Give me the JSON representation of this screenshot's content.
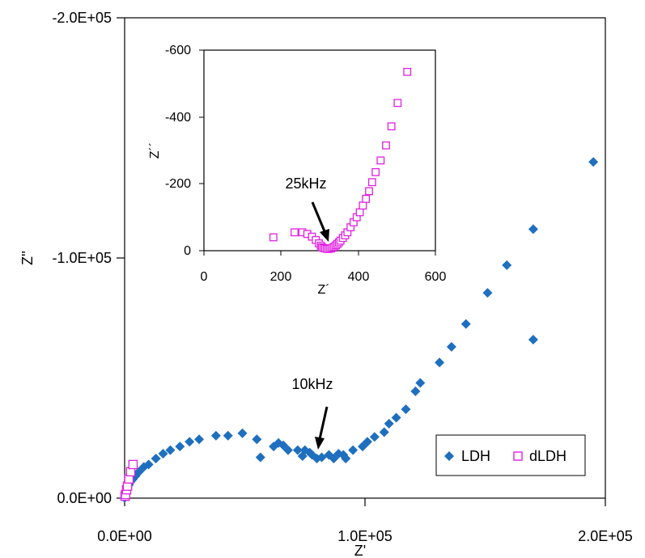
{
  "chart_data": [
    {
      "type": "scatter",
      "xlabel": "Z'",
      "ylabel": "Z''",
      "xlim": [
        0,
        200000
      ],
      "ylim": [
        0,
        -200000
      ],
      "x_ticks": [
        "0.0E+00",
        "1.0E+05",
        "2.0E+05"
      ],
      "y_ticks": [
        "0.0E+00",
        "-1.0E+05",
        "-2.0E+05"
      ],
      "legend_position": "bottom-right",
      "annotation": {
        "text": "10kHz",
        "x": 82000,
        "y": -17000
      },
      "series": [
        {
          "name": "LDH",
          "color": "#1f6fbf",
          "marker": "diamond",
          "points": [
            [
              0,
              -100
            ],
            [
              400,
              -1500
            ],
            [
              800,
              -3000
            ],
            [
              1200,
              -4200
            ],
            [
              1800,
              -5500
            ],
            [
              2500,
              -6800
            ],
            [
              3500,
              -8000
            ],
            [
              4500,
              -9200
            ],
            [
              6000,
              -11000
            ],
            [
              8000,
              -13000
            ],
            [
              10000,
              -14000
            ],
            [
              13000,
              -16500
            ],
            [
              16000,
              -18500
            ],
            [
              19000,
              -20000
            ],
            [
              23000,
              -21500
            ],
            [
              27000,
              -23500
            ],
            [
              31000,
              -24500
            ],
            [
              38000,
              -26000
            ],
            [
              43000,
              -26000
            ],
            [
              49000,
              -27000
            ],
            [
              55000,
              -24500
            ],
            [
              56500,
              -17000
            ],
            [
              62000,
              -21500
            ],
            [
              64000,
              -23000
            ],
            [
              66000,
              -22000
            ],
            [
              68000,
              -20000
            ],
            [
              72000,
              -20000
            ],
            [
              74000,
              -17500
            ],
            [
              75000,
              -20000
            ],
            [
              77000,
              -19000
            ],
            [
              78000,
              -18000
            ],
            [
              80000,
              -16500
            ],
            [
              82000,
              -17000
            ],
            [
              85000,
              -18000
            ],
            [
              87000,
              -16500
            ],
            [
              89000,
              -18500
            ],
            [
              91000,
              -18000
            ],
            [
              92000,
              -16500
            ],
            [
              95000,
              -20000
            ],
            [
              99000,
              -21500
            ],
            [
              101000,
              -23500
            ],
            [
              104000,
              -25500
            ],
            [
              108000,
              -27500
            ],
            [
              110000,
              -31000
            ],
            [
              113000,
              -33500
            ],
            [
              117000,
              -37000
            ],
            [
              121000,
              -44500
            ],
            [
              123000,
              -48000
            ],
            [
              131000,
              -56500
            ],
            [
              136000,
              -63000
            ],
            [
              142000,
              -72500
            ],
            [
              151000,
              -85500
            ],
            [
              159000,
              -97000
            ],
            [
              170000,
              -66000
            ],
            [
              170000,
              -112000
            ],
            [
              195000,
              -140000
            ]
          ]
        },
        {
          "name": "dLDH",
          "color": "#e020e0",
          "marker": "square",
          "points": [
            [
              200,
              -800
            ],
            [
              400,
              -1500
            ],
            [
              800,
              -3500
            ],
            [
              1200,
              -5000
            ],
            [
              1800,
              -8000
            ],
            [
              2500,
              -11000
            ],
            [
              3500,
              -14000
            ]
          ]
        }
      ]
    },
    {
      "type": "scatter",
      "xlabel": "Z´",
      "ylabel": "Z´´",
      "xlim": [
        0,
        600
      ],
      "ylim": [
        0,
        -600
      ],
      "x_ticks": [
        "0",
        "200",
        "400",
        "600"
      ],
      "y_ticks": [
        "0",
        "-200",
        "-400",
        "-600"
      ],
      "annotation": {
        "text": "25kHz",
        "x": 320,
        "y": -35
      },
      "series": [
        {
          "name": "dLDH",
          "color": "#e020e0",
          "marker": "square",
          "points": [
            [
              180,
              -40
            ],
            [
              235,
              -55
            ],
            [
              255,
              -55
            ],
            [
              268,
              -50
            ],
            [
              280,
              -42
            ],
            [
              290,
              -32
            ],
            [
              298,
              -22
            ],
            [
              303,
              -15
            ],
            [
              306,
              -10
            ],
            [
              310,
              -8
            ],
            [
              314,
              -7
            ],
            [
              318,
              -6
            ],
            [
              322,
              -5
            ],
            [
              326,
              -6
            ],
            [
              330,
              -7
            ],
            [
              334,
              -9
            ],
            [
              338,
              -12
            ],
            [
              342,
              -16
            ],
            [
              346,
              -20
            ],
            [
              350,
              -25
            ],
            [
              354,
              -30
            ],
            [
              360,
              -38
            ],
            [
              366,
              -46
            ],
            [
              372,
              -55
            ],
            [
              380,
              -70
            ],
            [
              388,
              -85
            ],
            [
              396,
              -100
            ],
            [
              404,
              -115
            ],
            [
              412,
              -135
            ],
            [
              420,
              -155
            ],
            [
              428,
              -178
            ],
            [
              436,
              -205
            ],
            [
              445,
              -235
            ],
            [
              458,
              -270
            ],
            [
              472,
              -315
            ],
            [
              486,
              -372
            ],
            [
              502,
              -442
            ],
            [
              527,
              -535
            ]
          ]
        }
      ]
    }
  ]
}
